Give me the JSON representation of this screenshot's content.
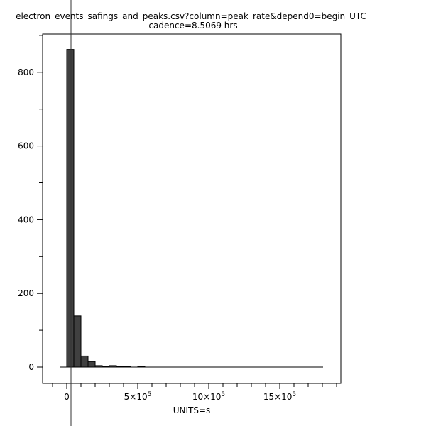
{
  "chart_data": {
    "type": "bar",
    "title": "electron_events_safings_and_peaks.csv?column=peak_rate&depend0=begin_UTC",
    "subtitle": "cadence=8.5069 hrs",
    "xlabel": "UNITS=s",
    "ylabel": "",
    "xlim": [
      -150000,
      1950000
    ],
    "ylim": [
      -45000,
      900
    ],
    "bin_width": 50000,
    "bin_start": 0,
    "values": [
      862,
      139,
      30,
      15,
      4,
      2,
      4,
      1,
      2,
      0,
      2,
      0,
      0,
      0,
      0,
      0,
      0,
      0,
      0,
      0,
      0,
      0,
      0,
      0,
      0,
      0,
      0,
      0,
      0,
      0,
      0,
      0,
      0,
      0,
      0,
      0
    ],
    "x_ticks": [
      {
        "v": 0,
        "label": "0"
      },
      {
        "v": 500000,
        "label": "5×10",
        "exp": "5"
      },
      {
        "v": 1000000,
        "label": "10×10",
        "exp": "5"
      },
      {
        "v": 1500000,
        "label": "15×10",
        "exp": "5"
      }
    ],
    "y_ticks": [
      {
        "v": 0,
        "label": "0"
      },
      {
        "v": 200,
        "label": "200"
      },
      {
        "v": 400,
        "label": "400"
      },
      {
        "v": 600,
        "label": "600"
      },
      {
        "v": 800,
        "label": "800"
      }
    ],
    "grid": false,
    "bar_color": "#404040"
  }
}
